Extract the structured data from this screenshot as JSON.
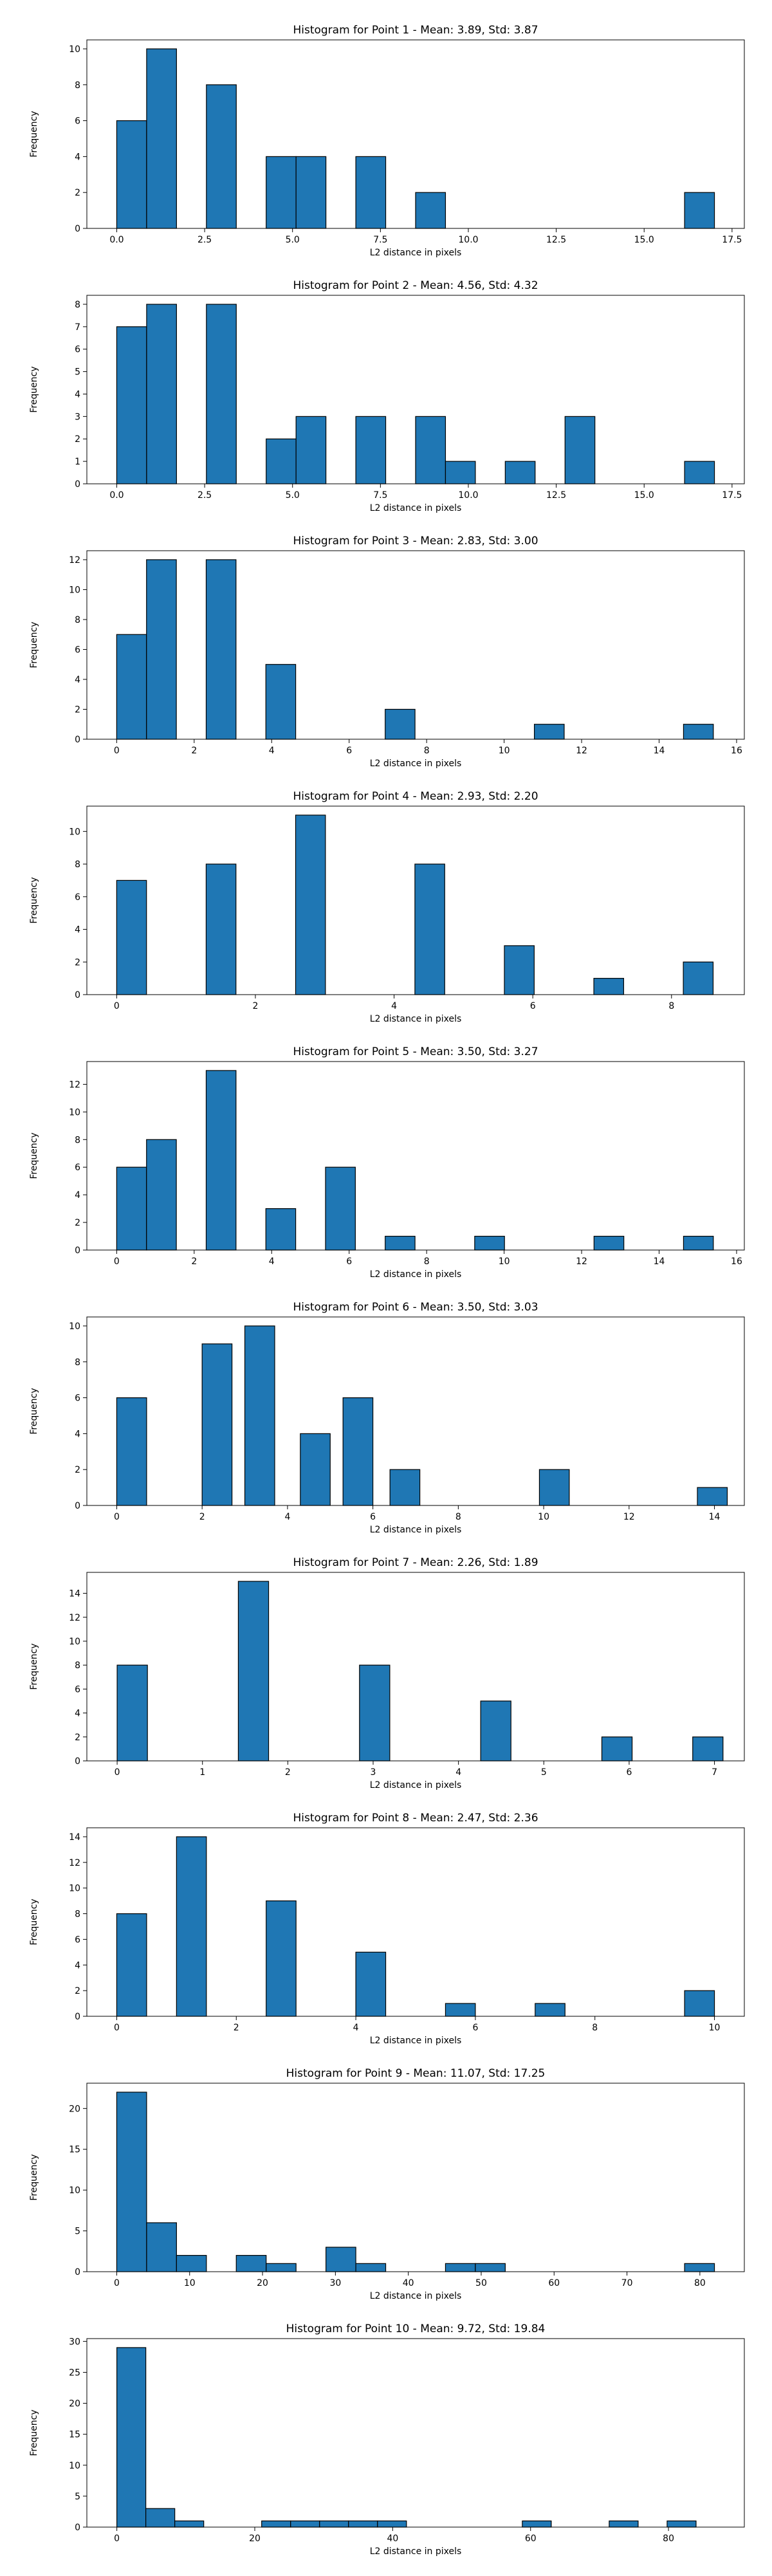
{
  "figure": {
    "xlabel": "L2 distance in pixels",
    "ylabel": "Frequency",
    "bar_color": "#1f77b4",
    "edge_color": "#000000"
  },
  "chart_data": [
    {
      "type": "bar",
      "title": "Histogram for Point 1 - Mean: 3.89, Std: 3.87",
      "xlabel": "L2 distance in pixels",
      "ylabel": "Frequency",
      "xlim": [
        -0.85,
        17.85
      ],
      "ylim": [
        0,
        10.5
      ],
      "xticks": [
        0,
        2.5,
        5,
        7.5,
        10,
        12.5,
        15,
        17.5
      ],
      "xtick_labels": [
        "0.0",
        "2.5",
        "5.0",
        "7.5",
        "10.0",
        "12.5",
        "15.0",
        "17.5"
      ],
      "yticks": [
        0,
        2,
        4,
        6,
        8,
        10
      ],
      "bin_width": 0.85,
      "bins": [
        [
          0,
          6
        ],
        [
          0.85,
          10
        ],
        [
          1.7,
          0
        ],
        [
          2.55,
          8
        ],
        [
          3.4,
          0
        ],
        [
          4.25,
          4
        ],
        [
          5.1,
          4
        ],
        [
          5.95,
          0
        ],
        [
          6.8,
          4
        ],
        [
          7.65,
          0
        ],
        [
          8.5,
          2
        ],
        [
          9.35,
          0
        ],
        [
          10.2,
          0
        ],
        [
          11.05,
          0
        ],
        [
          11.9,
          0
        ],
        [
          12.75,
          0
        ],
        [
          13.6,
          0
        ],
        [
          14.45,
          0
        ],
        [
          15.3,
          0
        ],
        [
          16.15,
          2
        ]
      ]
    },
    {
      "type": "bar",
      "title": "Histogram for Point 2 - Mean: 4.56, Std: 4.32",
      "xlabel": "L2 distance in pixels",
      "ylabel": "Frequency",
      "xlim": [
        -0.85,
        17.85
      ],
      "ylim": [
        0,
        8.4
      ],
      "xticks": [
        0,
        2.5,
        5,
        7.5,
        10,
        12.5,
        15,
        17.5
      ],
      "xtick_labels": [
        "0.0",
        "2.5",
        "5.0",
        "7.5",
        "10.0",
        "12.5",
        "15.0",
        "17.5"
      ],
      "yticks": [
        0,
        1,
        2,
        3,
        4,
        5,
        6,
        7,
        8
      ],
      "bin_width": 0.85,
      "bins": [
        [
          0,
          7
        ],
        [
          0.85,
          8
        ],
        [
          1.7,
          0
        ],
        [
          2.55,
          8
        ],
        [
          3.4,
          0
        ],
        [
          4.25,
          2
        ],
        [
          5.1,
          3
        ],
        [
          5.95,
          0
        ],
        [
          6.8,
          3
        ],
        [
          7.65,
          0
        ],
        [
          8.5,
          3
        ],
        [
          9.35,
          1
        ],
        [
          10.2,
          0
        ],
        [
          11.05,
          1
        ],
        [
          11.9,
          0
        ],
        [
          12.75,
          3
        ],
        [
          13.6,
          0
        ],
        [
          14.45,
          0
        ],
        [
          15.3,
          0
        ],
        [
          16.15,
          1
        ]
      ]
    },
    {
      "type": "bar",
      "title": "Histogram for Point 3 - Mean: 2.83, Std: 3.00",
      "xlabel": "L2 distance in pixels",
      "ylabel": "Frequency",
      "xlim": [
        -0.77,
        16.2
      ],
      "ylim": [
        0,
        12.6
      ],
      "xticks": [
        0,
        2,
        4,
        6,
        8,
        10,
        12,
        14,
        16
      ],
      "xtick_labels": [
        "0",
        "2",
        "4",
        "6",
        "8",
        "10",
        "12",
        "14",
        "16"
      ],
      "yticks": [
        0,
        2,
        4,
        6,
        8,
        10,
        12
      ],
      "bin_width": 0.77,
      "bins": [
        [
          0,
          7
        ],
        [
          0.77,
          12
        ],
        [
          1.54,
          0
        ],
        [
          2.31,
          12
        ],
        [
          3.08,
          0
        ],
        [
          3.85,
          5
        ],
        [
          4.62,
          0
        ],
        [
          5.39,
          0
        ],
        [
          6.16,
          0
        ],
        [
          6.93,
          2
        ],
        [
          7.7,
          0
        ],
        [
          8.47,
          0
        ],
        [
          9.24,
          0
        ],
        [
          10.01,
          0
        ],
        [
          10.78,
          1
        ],
        [
          11.55,
          0
        ],
        [
          12.32,
          0
        ],
        [
          13.09,
          0
        ],
        [
          13.86,
          0
        ],
        [
          14.63,
          1
        ]
      ]
    },
    {
      "type": "bar",
      "title": "Histogram for Point 4 - Mean: 2.93, Std: 2.20",
      "xlabel": "L2 distance in pixels",
      "ylabel": "Frequency",
      "xlim": [
        -0.43,
        9.05
      ],
      "ylim": [
        0,
        11.55
      ],
      "xticks": [
        0,
        2,
        4,
        6,
        8
      ],
      "xtick_labels": [
        "0",
        "2",
        "4",
        "6",
        "8"
      ],
      "yticks": [
        0,
        2,
        4,
        6,
        8,
        10
      ],
      "bin_width": 0.43,
      "bins": [
        [
          0,
          7
        ],
        [
          0.43,
          0
        ],
        [
          0.86,
          0
        ],
        [
          1.29,
          8
        ],
        [
          1.72,
          0
        ],
        [
          2.15,
          0
        ],
        [
          2.58,
          11
        ],
        [
          3.01,
          0
        ],
        [
          3.44,
          0
        ],
        [
          3.87,
          0
        ],
        [
          4.3,
          8
        ],
        [
          4.73,
          0
        ],
        [
          5.16,
          0
        ],
        [
          5.59,
          3
        ],
        [
          6.02,
          0
        ],
        [
          6.45,
          0
        ],
        [
          6.88,
          1
        ],
        [
          7.31,
          0
        ],
        [
          7.74,
          0
        ],
        [
          8.17,
          2
        ]
      ]
    },
    {
      "type": "bar",
      "title": "Histogram for Point 5 - Mean: 3.50, Std: 3.27",
      "xlabel": "L2 distance in pixels",
      "ylabel": "Frequency",
      "xlim": [
        -0.77,
        16.2
      ],
      "ylim": [
        0,
        13.65
      ],
      "xticks": [
        0,
        2,
        4,
        6,
        8,
        10,
        12,
        14,
        16
      ],
      "xtick_labels": [
        "0",
        "2",
        "4",
        "6",
        "8",
        "10",
        "12",
        "14",
        "16"
      ],
      "yticks": [
        0,
        2,
        4,
        6,
        8,
        10,
        12
      ],
      "bin_width": 0.77,
      "bins": [
        [
          0,
          6
        ],
        [
          0.77,
          8
        ],
        [
          1.54,
          0
        ],
        [
          2.31,
          13
        ],
        [
          3.08,
          0
        ],
        [
          3.85,
          3
        ],
        [
          4.62,
          0
        ],
        [
          5.39,
          6
        ],
        [
          6.16,
          0
        ],
        [
          6.93,
          1
        ],
        [
          7.7,
          0
        ],
        [
          8.47,
          0
        ],
        [
          9.24,
          1
        ],
        [
          10.01,
          0
        ],
        [
          10.78,
          0
        ],
        [
          11.55,
          0
        ],
        [
          12.32,
          1
        ],
        [
          13.09,
          0
        ],
        [
          13.86,
          0
        ],
        [
          14.63,
          1
        ]
      ]
    },
    {
      "type": "bar",
      "title": "Histogram for Point 6 - Mean: 3.50, Std: 3.03",
      "xlabel": "L2 distance in pixels",
      "ylabel": "Frequency",
      "xlim": [
        -0.7,
        14.7
      ],
      "ylim": [
        0,
        10.5
      ],
      "xticks": [
        0,
        2,
        4,
        6,
        8,
        10,
        12,
        14
      ],
      "xtick_labels": [
        "0",
        "2",
        "4",
        "6",
        "8",
        "10",
        "12",
        "14"
      ],
      "yticks": [
        0,
        2,
        4,
        6,
        8,
        10
      ],
      "bin_width": 0.7,
      "bins": [
        [
          0,
          6
        ],
        [
          0.7,
          0
        ],
        [
          1.4,
          0
        ],
        [
          2.0,
          9
        ],
        [
          2.7,
          0
        ],
        [
          3.0,
          10
        ],
        [
          3.7,
          0
        ],
        [
          4.3,
          4
        ],
        [
          5.0,
          0
        ],
        [
          5.3,
          6
        ],
        [
          6.0,
          0
        ],
        [
          6.4,
          2
        ],
        [
          7.1,
          0
        ],
        [
          8.0,
          0
        ],
        [
          9.0,
          0
        ],
        [
          9.9,
          2
        ],
        [
          11.0,
          0
        ],
        [
          12.0,
          0
        ],
        [
          13.0,
          0
        ],
        [
          13.6,
          1
        ]
      ]
    },
    {
      "type": "bar",
      "title": "Histogram for Point 7 - Mean: 2.26, Std: 1.89",
      "xlabel": "L2 distance in pixels",
      "ylabel": "Frequency",
      "xlim": [
        -0.355,
        7.35
      ],
      "ylim": [
        0,
        15.75
      ],
      "xticks": [
        0,
        1,
        2,
        3,
        4,
        5,
        6,
        7
      ],
      "xtick_labels": [
        "0",
        "1",
        "2",
        "3",
        "4",
        "5",
        "6",
        "7"
      ],
      "yticks": [
        0,
        2,
        4,
        6,
        8,
        10,
        12,
        14
      ],
      "bin_width": 0.355,
      "bins": [
        [
          0,
          8
        ],
        [
          0.355,
          0
        ],
        [
          0.71,
          0
        ],
        [
          1.065,
          0
        ],
        [
          1.42,
          15
        ],
        [
          1.775,
          0
        ],
        [
          2.13,
          0
        ],
        [
          2.485,
          0
        ],
        [
          2.84,
          8
        ],
        [
          3.195,
          0
        ],
        [
          3.55,
          0
        ],
        [
          3.905,
          0
        ],
        [
          4.26,
          5
        ],
        [
          4.615,
          0
        ],
        [
          4.97,
          0
        ],
        [
          5.325,
          0
        ],
        [
          5.68,
          2
        ],
        [
          6.035,
          0
        ],
        [
          6.39,
          0
        ],
        [
          6.745,
          2
        ]
      ]
    },
    {
      "type": "bar",
      "title": "Histogram for Point 8 - Mean: 2.47, Std: 2.36",
      "xlabel": "L2 distance in pixels",
      "ylabel": "Frequency",
      "xlim": [
        -0.5,
        10.5
      ],
      "ylim": [
        0,
        14.7
      ],
      "xticks": [
        0,
        2,
        4,
        6,
        8,
        10
      ],
      "xtick_labels": [
        "0",
        "2",
        "4",
        "6",
        "8",
        "10"
      ],
      "yticks": [
        0,
        2,
        4,
        6,
        8,
        10,
        12,
        14
      ],
      "bin_width": 0.5,
      "bins": [
        [
          0,
          8
        ],
        [
          0.5,
          0
        ],
        [
          1.0,
          14
        ],
        [
          1.5,
          0
        ],
        [
          2.0,
          0
        ],
        [
          2.5,
          9
        ],
        [
          3.0,
          0
        ],
        [
          3.5,
          0
        ],
        [
          4.0,
          5
        ],
        [
          4.5,
          0
        ],
        [
          5.0,
          0
        ],
        [
          5.5,
          1
        ],
        [
          6.0,
          0
        ],
        [
          6.5,
          0
        ],
        [
          7.0,
          1
        ],
        [
          7.5,
          0
        ],
        [
          8.0,
          0
        ],
        [
          8.5,
          0
        ],
        [
          9.0,
          0
        ],
        [
          9.5,
          2
        ]
      ]
    },
    {
      "type": "bar",
      "title": "Histogram for Point 9 - Mean: 11.07, Std: 17.25",
      "xlabel": "L2 distance in pixels",
      "ylabel": "Frequency",
      "xlim": [
        -4.1,
        86.1
      ],
      "ylim": [
        0,
        23.1
      ],
      "xticks": [
        0,
        10,
        20,
        30,
        40,
        50,
        60,
        70,
        80
      ],
      "xtick_labels": [
        "0",
        "10",
        "20",
        "30",
        "40",
        "50",
        "60",
        "70",
        "80"
      ],
      "yticks": [
        0,
        5,
        10,
        15,
        20
      ],
      "bin_width": 4.1,
      "bins": [
        [
          0,
          22
        ],
        [
          4.1,
          6
        ],
        [
          8.2,
          2
        ],
        [
          12.3,
          0
        ],
        [
          16.4,
          2
        ],
        [
          20.5,
          1
        ],
        [
          24.6,
          0
        ],
        [
          28.7,
          3
        ],
        [
          32.8,
          1
        ],
        [
          36.9,
          0
        ],
        [
          41.0,
          0
        ],
        [
          45.1,
          1
        ],
        [
          49.2,
          1
        ],
        [
          53.3,
          0
        ],
        [
          57.4,
          0
        ],
        [
          61.5,
          0
        ],
        [
          65.6,
          0
        ],
        [
          69.7,
          0
        ],
        [
          73.8,
          0
        ],
        [
          77.9,
          1
        ]
      ]
    },
    {
      "type": "bar",
      "title": "Histogram for Point 10 - Mean: 9.72, Std: 19.84",
      "xlabel": "L2 distance in pixels",
      "ylabel": "Frequency",
      "xlim": [
        -4.35,
        91.0
      ],
      "ylim": [
        0,
        30.45
      ],
      "xticks": [
        0,
        20,
        40,
        60,
        80
      ],
      "xtick_labels": [
        "0",
        "20",
        "40",
        "60",
        "80"
      ],
      "yticks": [
        0,
        5,
        10,
        15,
        20,
        25,
        30
      ],
      "bin_width": 4.2,
      "bins": [
        [
          0,
          29
        ],
        [
          4.2,
          3
        ],
        [
          8.4,
          1
        ],
        [
          12.6,
          0
        ],
        [
          16.8,
          0
        ],
        [
          21.0,
          1
        ],
        [
          25.2,
          1
        ],
        [
          29.4,
          1
        ],
        [
          33.6,
          1
        ],
        [
          37.8,
          1
        ],
        [
          42.0,
          0
        ],
        [
          46.2,
          0
        ],
        [
          50.4,
          0
        ],
        [
          54.6,
          0
        ],
        [
          58.8,
          1
        ],
        [
          63.0,
          0
        ],
        [
          67.2,
          0
        ],
        [
          71.4,
          1
        ],
        [
          75.6,
          0
        ],
        [
          79.8,
          1
        ]
      ]
    }
  ]
}
